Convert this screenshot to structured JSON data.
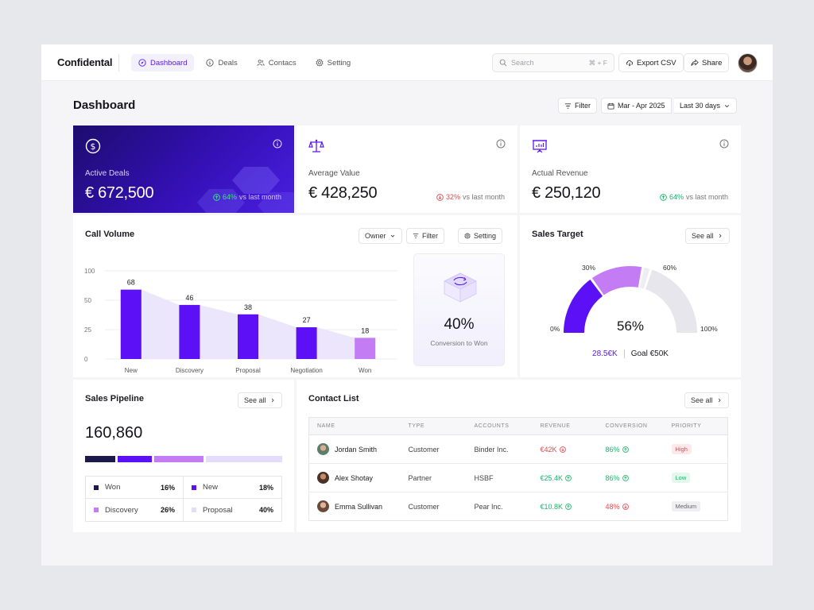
{
  "header": {
    "logo": "Confidental",
    "nav": [
      {
        "label": "Dashboard",
        "icon": "compass-icon",
        "active": true
      },
      {
        "label": "Deals",
        "icon": "dollar-circle-icon",
        "active": false
      },
      {
        "label": "Contacs",
        "icon": "users-icon",
        "active": false
      },
      {
        "label": "Setting",
        "icon": "gear-icon",
        "active": false
      }
    ],
    "search": {
      "placeholder": "Search",
      "shortcut": "⌘ + F"
    },
    "export_label": "Export CSV",
    "share_label": "Share"
  },
  "page": {
    "title": "Dashboard",
    "filter_label": "Filter",
    "date_range": "Mar - Apr 2025",
    "period": "Last 30 days"
  },
  "kpis": [
    {
      "title": "Active Deals",
      "value": "€ 672,500",
      "trend": "64%",
      "trend_dir": "up",
      "trend_note": "vs last month",
      "icon": "dollar-circle-icon"
    },
    {
      "title": "Average Value",
      "value": "€ 428,250",
      "trend": "32%",
      "trend_dir": "down",
      "trend_note": "vs last month",
      "icon": "scale-icon"
    },
    {
      "title": "Actual Revenue",
      "value": "€ 250,120",
      "trend": "64%",
      "trend_dir": "up",
      "trend_note": "vs last month",
      "icon": "presentation-chart-icon"
    }
  ],
  "call_volume": {
    "title": "Call Volume",
    "owner_label": "Owner",
    "filter_label": "Filter",
    "setting_label": "Setting",
    "conversion_value": "40%",
    "conversion_label": "Conversion to Won"
  },
  "chart_data": {
    "type": "bar",
    "title": "Call Volume",
    "categories": [
      "New",
      "Discovery",
      "Proposal",
      "Negotiation",
      "Won"
    ],
    "values": [
      68,
      46,
      38,
      27,
      18
    ],
    "y_ticks": [
      "100",
      "50",
      "25",
      "0"
    ],
    "bar_colors": [
      "#5b10f5",
      "#5b10f5",
      "#5b10f5",
      "#5b10f5",
      "#c47cf5"
    ],
    "area_color": "#ece6fd",
    "grid": true
  },
  "sales_target": {
    "title": "Sales Target",
    "see_all": "See all",
    "percent": "56%",
    "labels": {
      "p0": "0%",
      "p30": "30%",
      "p60": "60%",
      "p100": "100%"
    },
    "achieved": "28.5€K",
    "goal": "Goal €50K",
    "segments": [
      0.3,
      0.26,
      0.04,
      0.4
    ]
  },
  "pipeline": {
    "title": "Sales Pipeline",
    "see_all": "See all",
    "total": "160,860",
    "items": [
      {
        "label": "Won",
        "pct": "16%",
        "color": "#1c1a4a"
      },
      {
        "label": "New",
        "pct": "18%",
        "color": "#5b10f5"
      },
      {
        "label": "Discovery",
        "pct": "26%",
        "color": "#c47cf5"
      },
      {
        "label": "Proposal",
        "pct": "40%",
        "color": "#e3dcfb"
      }
    ]
  },
  "contacts": {
    "title": "Contact List",
    "see_all": "See all",
    "columns": [
      "NAME",
      "TYPE",
      "ACCOUNTS",
      "REVENUE",
      "CONVERSION",
      "PRIORITY"
    ],
    "rows": [
      {
        "name": "Jordan Smith",
        "type": "Customer",
        "account": "Binder Inc.",
        "revenue": "€42K",
        "revenue_dir": "down",
        "conversion": "86%",
        "conversion_dir": "up",
        "priority": "High"
      },
      {
        "name": "Alex Shotay",
        "type": "Partner",
        "account": "HSBF",
        "revenue": "€25.4K",
        "revenue_dir": "up",
        "conversion": "86%",
        "conversion_dir": "up",
        "priority": "Low"
      },
      {
        "name": "Emma Sullivan",
        "type": "Customer",
        "account": "Pear Inc.",
        "revenue": "€10.8K",
        "revenue_dir": "up",
        "conversion": "48%",
        "conversion_dir": "down",
        "priority": "Medium"
      }
    ]
  }
}
